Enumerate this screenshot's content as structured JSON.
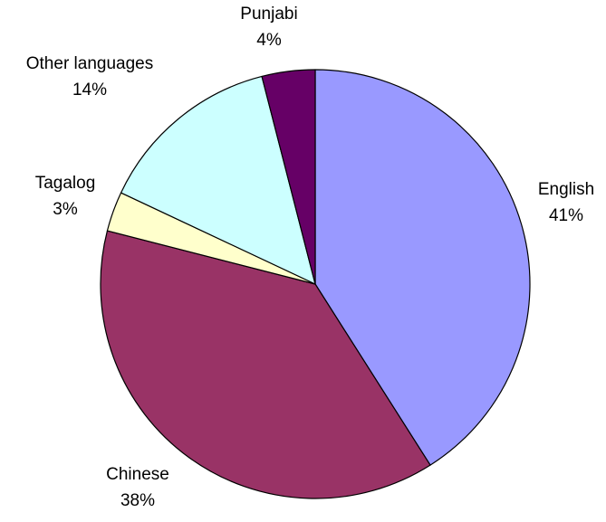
{
  "chart_data": {
    "type": "pie",
    "title": "",
    "slices": [
      {
        "label": "English",
        "value": 41,
        "value_label": "41%",
        "color": "#9999FF"
      },
      {
        "label": "Chinese",
        "value": 38,
        "value_label": "38%",
        "color": "#993366"
      },
      {
        "label": "Tagalog",
        "value": 3,
        "value_label": "3%",
        "color": "#FFFFCC"
      },
      {
        "label": "Other languages",
        "value": 14,
        "value_label": "14%",
        "color": "#CCFFFF"
      },
      {
        "label": "Punjabi",
        "value": 4,
        "value_label": "4%",
        "color": "#660066"
      }
    ],
    "start_angle": "12 o'clock",
    "direction": "clockwise",
    "legend": "none"
  }
}
